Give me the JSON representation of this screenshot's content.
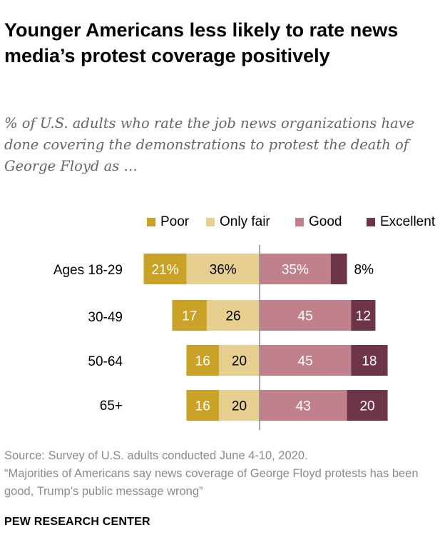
{
  "header": {
    "title": "Younger Americans less likely to rate news media’s protest coverage positively",
    "subtitle": "% of U.S. adults who rate the job news organizations have done covering the demonstrations to protest the death of George Floyd as …"
  },
  "footer": {
    "source": "Source: Survey of U.S. adults conducted June 4-10, 2020.",
    "report": "“Majorities of Americans say news coverage of George Floyd protests has been good, Trump’s public message wrong”",
    "brand": "PEW RESEARCH CENTER"
  },
  "colors": {
    "poor": "#c9a227",
    "only_fair": "#e6cf8f",
    "good": "#c0808c",
    "excellent": "#6e3546",
    "center_line": "#8c8c8c"
  },
  "chart_data": {
    "type": "bar",
    "orientation": "horizontal-diverging",
    "title": "Younger Americans less likely to rate news media’s protest coverage positively",
    "subtitle": "% of U.S. adults who rate the job news organizations have done covering the demonstrations to protest the death of George Floyd as …",
    "categories": [
      "Ages 18-29",
      "30-49",
      "50-64",
      "65+"
    ],
    "legend": [
      "Poor",
      "Only fair",
      "Good",
      "Excellent"
    ],
    "legend_position": "top",
    "series": [
      {
        "name": "Poor",
        "side": "negative",
        "values": [
          21,
          17,
          16,
          16
        ],
        "labels": [
          "21%",
          "17",
          "16",
          "16"
        ]
      },
      {
        "name": "Only fair",
        "side": "negative",
        "values": [
          36,
          26,
          20,
          20
        ],
        "labels": [
          "36%",
          "26",
          "20",
          "20"
        ]
      },
      {
        "name": "Good",
        "side": "positive",
        "values": [
          35,
          45,
          45,
          43
        ],
        "labels": [
          "35%",
          "45",
          "45",
          "43"
        ]
      },
      {
        "name": "Excellent",
        "side": "positive",
        "values": [
          8,
          12,
          18,
          20
        ],
        "labels": [
          "8%",
          "12",
          "18",
          "20"
        ]
      }
    ],
    "xlabel": "",
    "ylabel": "",
    "grid": false
  }
}
